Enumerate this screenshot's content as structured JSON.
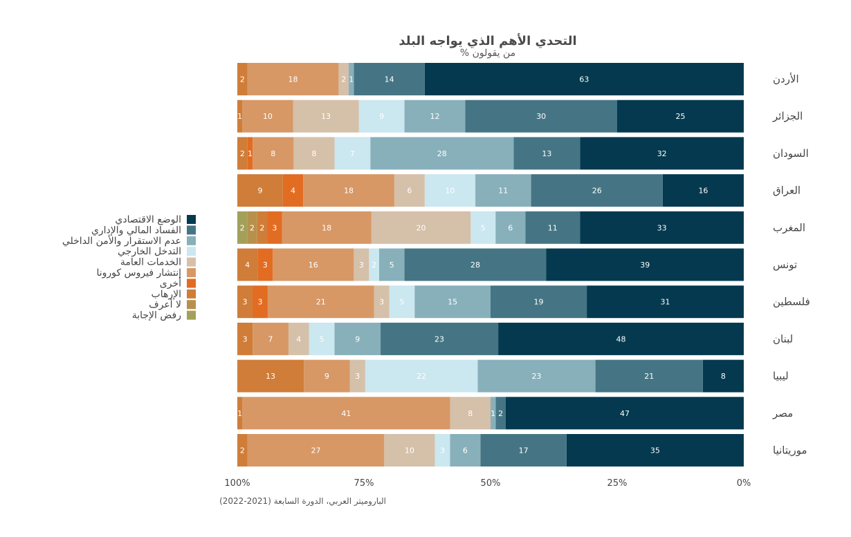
{
  "chart_data": {
    "type": "bar",
    "orientation": "horizontal-stacked",
    "title": "التحدي الأهم الذي يواجه البلد",
    "subtitle": "% من يقولون",
    "source": "الباروميتر العربي، الدورة السابعة (2021-2022)",
    "x_ticks": [
      "100%",
      "75%",
      "50%",
      "25%",
      "0%"
    ],
    "xlim": [
      0,
      100
    ],
    "legend_position": "left",
    "categories": [
      "الأردن",
      "الجزائر",
      "السودان",
      "العراق",
      "المغرب",
      "تونس",
      "فلسطين",
      "لبنان",
      "ليبيا",
      "مصر",
      "موريتانيا"
    ],
    "series": [
      {
        "name": "الوضع الاقتصادي",
        "color": "#04394f",
        "values": [
          63,
          25,
          32,
          16,
          33,
          39,
          31,
          48,
          8,
          47,
          35
        ]
      },
      {
        "name": "الفساد المالي والإداري",
        "color": "#457584",
        "values": [
          14,
          30,
          13,
          26,
          11,
          28,
          19,
          23,
          21,
          2,
          17
        ]
      },
      {
        "name": "عدم الاستقرار والأمن الداخلي",
        "color": "#88b0bb",
        "values": [
          1,
          12,
          28,
          11,
          6,
          5,
          15,
          9,
          23,
          1,
          6
        ]
      },
      {
        "name": "التدخل الخارجي",
        "color": "#cbe7f0",
        "values": [
          0,
          9,
          7,
          10,
          5,
          2,
          5,
          5,
          22,
          0,
          3
        ]
      },
      {
        "name": "الخدمات العامة",
        "color": "#d5c0a9",
        "values": [
          2,
          13,
          8,
          6,
          20,
          3,
          3,
          4,
          3,
          8,
          10
        ]
      },
      {
        "name": "إنتشار فيروس كورونا",
        "color": "#d79866",
        "values": [
          18,
          10,
          8,
          18,
          18,
          16,
          21,
          7,
          9,
          41,
          27
        ]
      },
      {
        "name": "أخرى",
        "color": "#e26c22",
        "values": [
          0,
          0,
          1,
          4,
          3,
          3,
          3,
          0,
          0,
          0,
          0
        ]
      },
      {
        "name": "الإرهاب",
        "color": "#cf7d38",
        "values": [
          2,
          1,
          2,
          9,
          2,
          4,
          3,
          3,
          13,
          1,
          2
        ]
      },
      {
        "name": "لا أعرف",
        "color": "#b8904d",
        "values": [
          0,
          0,
          0,
          0,
          2,
          0,
          0,
          0,
          0,
          0,
          0
        ]
      },
      {
        "name": "رفض الإجابة",
        "color": "#a3a05a",
        "values": [
          0,
          0,
          0,
          0,
          2,
          0,
          0,
          0,
          0,
          0,
          0
        ]
      }
    ]
  }
}
